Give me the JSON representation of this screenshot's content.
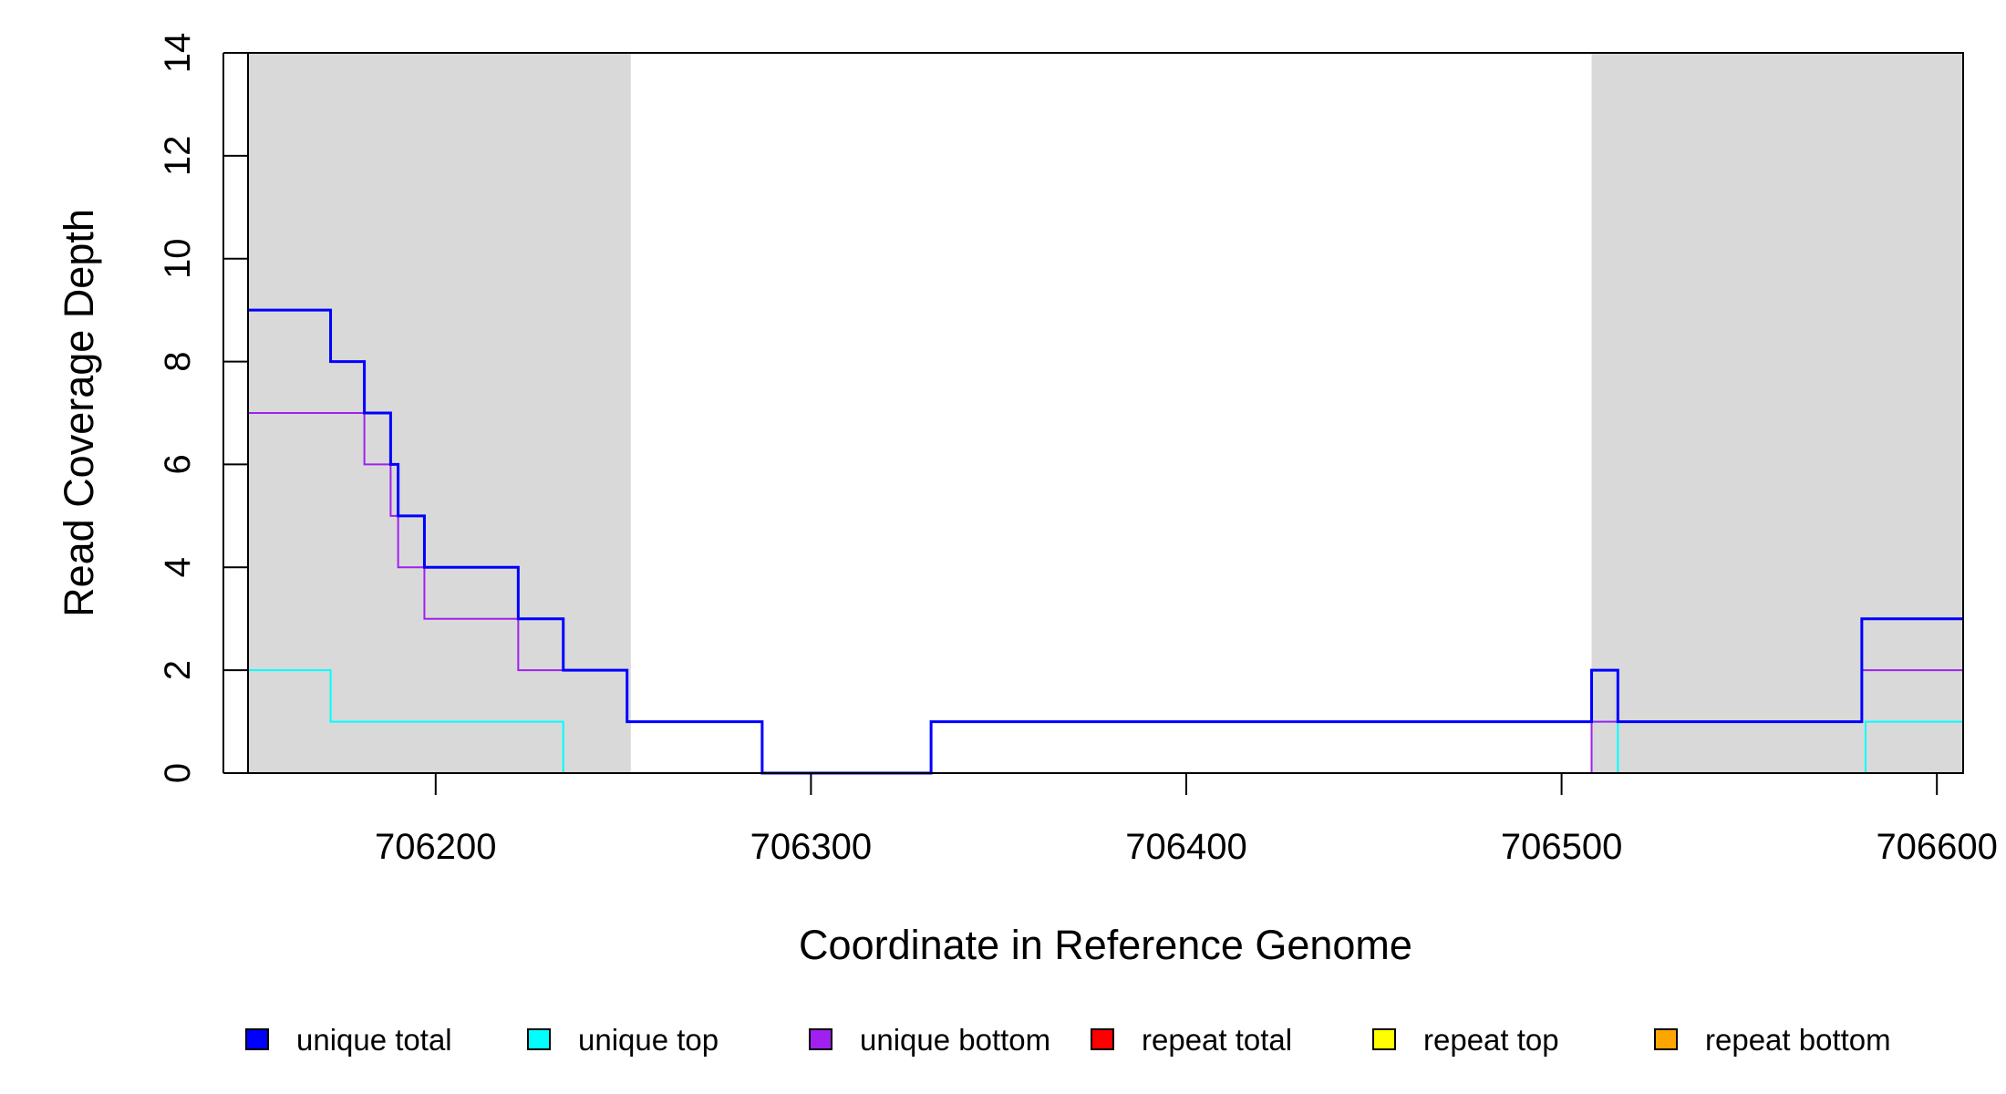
{
  "chart_data": {
    "type": "line",
    "title": "",
    "xlabel": "Coordinate in Reference Genome",
    "ylabel": "Read Coverage Depth",
    "xlim": [
      706150,
      706607
    ],
    "ylim": [
      0,
      14
    ],
    "x_ticks": [
      "706200",
      "706300",
      "706400",
      "706500",
      "706600"
    ],
    "y_ticks": [
      "0",
      "2",
      "4",
      "6",
      "8",
      "10",
      "12",
      "14"
    ],
    "grid": false,
    "legend_position": "bottom",
    "shaded_regions": [
      {
        "x": [
          706150,
          706252
        ],
        "color": "#d9d9d9"
      },
      {
        "x": [
          706508,
          706607
        ],
        "color": "#d9d9d9"
      }
    ],
    "series": [
      {
        "name": "unique total",
        "color": "#0000ff",
        "steps": [
          [
            706150,
            9
          ],
          [
            706172,
            8
          ],
          [
            706181,
            7
          ],
          [
            706188,
            6
          ],
          [
            706190,
            5
          ],
          [
            706197,
            4
          ],
          [
            706222,
            3
          ],
          [
            706234,
            2
          ],
          [
            706251,
            1
          ],
          [
            706287,
            0
          ],
          [
            706332,
            1
          ],
          [
            706508,
            2
          ],
          [
            706515,
            1
          ],
          [
            706580,
            3
          ],
          [
            706607,
            3
          ]
        ]
      },
      {
        "name": "unique top",
        "color": "#00ffff",
        "steps": [
          [
            706150,
            2
          ],
          [
            706172,
            1
          ],
          [
            706234,
            0
          ],
          [
            706332,
            1
          ],
          [
            706508,
            1
          ],
          [
            706515,
            0
          ],
          [
            706581,
            1
          ],
          [
            706607,
            1
          ]
        ]
      },
      {
        "name": "unique bottom",
        "color": "#a020f0",
        "steps": [
          [
            706150,
            7
          ],
          [
            706181,
            6
          ],
          [
            706188,
            5
          ],
          [
            706190,
            4
          ],
          [
            706197,
            3
          ],
          [
            706222,
            2
          ],
          [
            706251,
            1
          ],
          [
            706287,
            0
          ],
          [
            706508,
            1
          ],
          [
            706580,
            2
          ],
          [
            706607,
            2
          ]
        ]
      },
      {
        "name": "repeat total",
        "color": "#ff0000",
        "steps": [
          [
            706150,
            0
          ],
          [
            706607,
            0
          ]
        ]
      },
      {
        "name": "repeat top",
        "color": "#ffff00",
        "steps": [
          [
            706150,
            0
          ],
          [
            706607,
            0
          ]
        ]
      },
      {
        "name": "repeat bottom",
        "color": "#ffa500",
        "steps": [
          [
            706150,
            0
          ],
          [
            706607,
            0
          ]
        ]
      }
    ]
  }
}
